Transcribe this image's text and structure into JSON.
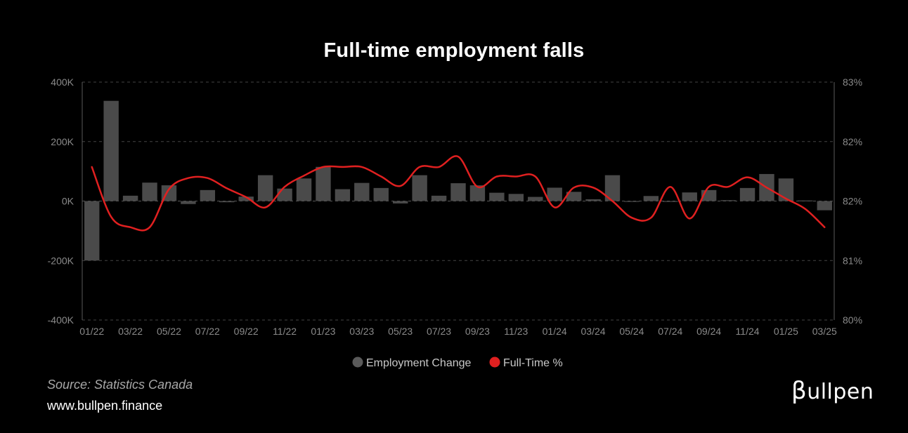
{
  "chart_data": {
    "type": "bar",
    "title": "Full-time employment falls",
    "categories": [
      "01/22",
      "02/22",
      "03/22",
      "04/22",
      "05/22",
      "06/22",
      "07/22",
      "08/22",
      "09/22",
      "10/22",
      "11/22",
      "12/22",
      "01/23",
      "02/23",
      "03/23",
      "04/23",
      "05/23",
      "06/23",
      "07/23",
      "08/23",
      "09/23",
      "10/23",
      "11/23",
      "12/23",
      "01/24",
      "02/24",
      "03/24",
      "04/24",
      "05/24",
      "06/24",
      "07/24",
      "08/24",
      "09/24",
      "10/24",
      "11/24",
      "12/24",
      "01/25",
      "02/25",
      "03/25"
    ],
    "x_tick_labels": [
      "01/22",
      "03/22",
      "05/22",
      "07/22",
      "09/22",
      "11/22",
      "01/23",
      "03/23",
      "05/23",
      "07/23",
      "09/23",
      "11/23",
      "01/24",
      "03/24",
      "05/24",
      "07/24",
      "09/24",
      "11/24",
      "01/25",
      "03/25"
    ],
    "series": [
      {
        "name": "Employment Change",
        "type": "bar",
        "axis": "left",
        "color": "#4a4a4a",
        "values": [
          -200000,
          337000,
          18000,
          62000,
          53000,
          -10000,
          37000,
          -4000,
          15000,
          87000,
          42000,
          76000,
          115000,
          40000,
          61000,
          44000,
          -8000,
          87000,
          18000,
          60000,
          53000,
          28000,
          24000,
          14000,
          45000,
          31000,
          6000,
          87000,
          -2000,
          17000,
          -2000,
          29000,
          37000,
          3000,
          44000,
          91000,
          76000,
          2000,
          -31000
        ]
      },
      {
        "name": "Full-Time %",
        "type": "line",
        "axis": "right",
        "color": "#e02020",
        "values": [
          81.93,
          81.3,
          81.17,
          81.17,
          81.65,
          81.79,
          81.79,
          81.66,
          81.55,
          81.42,
          81.68,
          81.82,
          81.93,
          81.93,
          81.93,
          81.81,
          81.69,
          81.93,
          81.93,
          82.06,
          81.68,
          81.81,
          81.81,
          81.81,
          81.42,
          81.67,
          81.67,
          81.5,
          81.29,
          81.29,
          81.68,
          81.28,
          81.68,
          81.68,
          81.8,
          81.67,
          81.53,
          81.4,
          81.17
        ]
      }
    ],
    "y_left": {
      "min": -400000,
      "max": 400000,
      "ticks": [
        400000,
        200000,
        0,
        -200000,
        -400000
      ],
      "tick_labels": [
        "400K",
        "200K",
        "0K",
        "-200K",
        "-400K"
      ]
    },
    "y_right": {
      "min": 80,
      "max": 83,
      "tick_positions": [
        83,
        82.25,
        81.5,
        80.75,
        80
      ],
      "tick_labels": [
        "83%",
        "82%",
        "82%",
        "81%",
        "80%"
      ]
    },
    "grid": "horizontal-dashed",
    "legend_position": "bottom-center"
  },
  "footer": {
    "source": "Source: Statistics Canada",
    "website": "www.bullpen.finance",
    "logo_glyph": "β",
    "logo_text": "ullpen"
  },
  "colors": {
    "background": "#000000",
    "bar": "#4a4a4a",
    "line": "#e02020",
    "grid": "#444444",
    "axis_text": "#8a8a8a"
  }
}
